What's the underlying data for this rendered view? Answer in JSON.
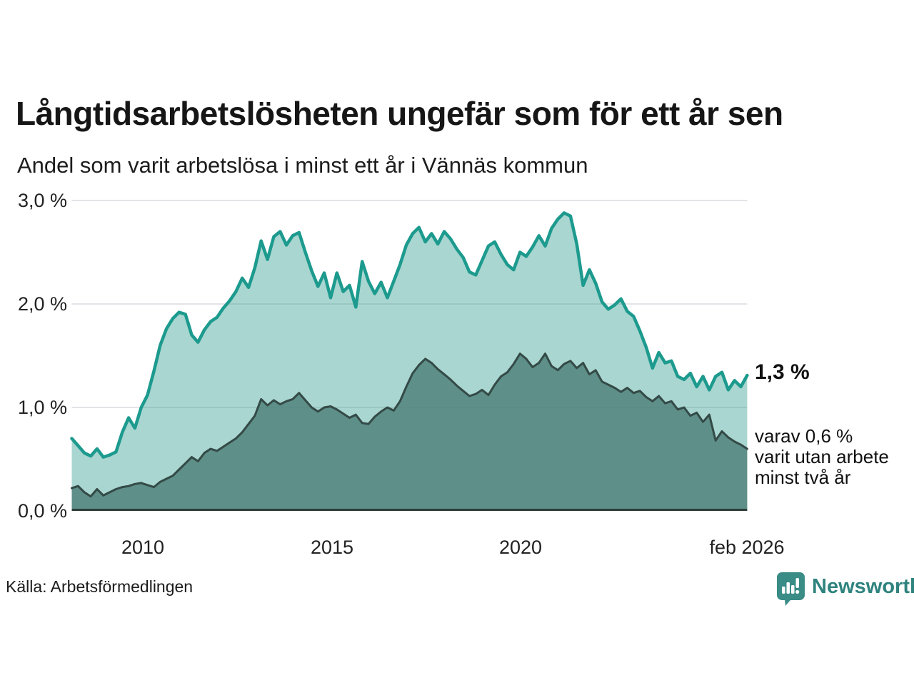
{
  "title": "Långtidsarbetslösheten ungefär som för ett år sen",
  "subtitle": "Andel som varit arbetslösa i minst ett år i Vännäs kommun",
  "source": {
    "text": "Källa: Arbetsförmedlingen"
  },
  "logo": {
    "text": "Newsworthy",
    "icon": "bar-chart-speech-bubble-icon",
    "color": "#2f837e",
    "badge_color": "#3a8c86"
  },
  "chart_data": {
    "type": "area",
    "title": "Långtidsarbetslösheten ungefär som för ett år sen",
    "subtitle": "Andel som varit arbetslösa i minst ett år i Vännäs kommun",
    "unit": "%",
    "x_range": [
      2008.12,
      2026.0
    ],
    "x_start": 2008.12,
    "x_step": 0.1671,
    "ylim": [
      0,
      3.2
    ],
    "grid": true,
    "grid_color": "#e4e4e8",
    "baseline_color": "#2c3d3a",
    "y_ticks": [
      {
        "value": 3.0,
        "label": "3,0 %"
      },
      {
        "value": 2.0,
        "label": "2,0 %"
      },
      {
        "value": 1.0,
        "label": "1,0 %"
      },
      {
        "value": 0.0,
        "label": "0,0 %"
      }
    ],
    "x_ticks": [
      {
        "year": 2010,
        "label": "2010"
      },
      {
        "year": 2015,
        "label": "2015"
      },
      {
        "year": 2020,
        "label": "2020"
      },
      {
        "year": 2026.0,
        "label": "feb 2026"
      }
    ],
    "series": [
      {
        "name": "Arbetslösa minst ett år",
        "color": "#1d9a8e",
        "fill": "rgba(64,164,151,0.45)",
        "line_width": 4.5,
        "end_label": "1,3 %",
        "end_value": 1.3,
        "values": [
          0.7,
          0.63,
          0.56,
          0.53,
          0.6,
          0.52,
          0.54,
          0.57,
          0.76,
          0.9,
          0.8,
          1.0,
          1.12,
          1.35,
          1.6,
          1.76,
          1.86,
          1.92,
          1.9,
          1.7,
          1.63,
          1.75,
          1.83,
          1.87,
          1.96,
          2.03,
          2.12,
          2.25,
          2.16,
          2.35,
          2.61,
          2.43,
          2.65,
          2.7,
          2.57,
          2.66,
          2.69,
          2.5,
          2.32,
          2.17,
          2.3,
          2.06,
          2.3,
          2.12,
          2.18,
          1.97,
          2.41,
          2.22,
          2.1,
          2.21,
          2.06,
          2.22,
          2.38,
          2.57,
          2.68,
          2.74,
          2.6,
          2.68,
          2.58,
          2.7,
          2.63,
          2.53,
          2.45,
          2.31,
          2.28,
          2.42,
          2.56,
          2.6,
          2.48,
          2.38,
          2.33,
          2.5,
          2.46,
          2.55,
          2.66,
          2.56,
          2.73,
          2.82,
          2.88,
          2.85,
          2.58,
          2.18,
          2.33,
          2.2,
          2.02,
          1.95,
          1.99,
          2.05,
          1.93,
          1.88,
          1.74,
          1.58,
          1.38,
          1.53,
          1.43,
          1.45,
          1.3,
          1.27,
          1.33,
          1.2,
          1.3,
          1.17,
          1.3,
          1.34,
          1.17,
          1.26,
          1.2,
          1.31
        ]
      },
      {
        "name": "varav utan arbete minst två år",
        "color": "#344a47",
        "fill": "rgba(75,125,118,0.80)",
        "line_width": 3,
        "end_label_lines": [
          "varav 0,6 %",
          "varit utan arbete",
          "minst två år"
        ],
        "end_value": 0.6,
        "values": [
          0.22,
          0.24,
          0.18,
          0.14,
          0.21,
          0.15,
          0.18,
          0.21,
          0.23,
          0.24,
          0.26,
          0.27,
          0.25,
          0.23,
          0.28,
          0.31,
          0.34,
          0.4,
          0.46,
          0.52,
          0.48,
          0.56,
          0.6,
          0.58,
          0.62,
          0.66,
          0.7,
          0.76,
          0.84,
          0.92,
          1.08,
          1.02,
          1.07,
          1.03,
          1.06,
          1.08,
          1.14,
          1.07,
          1.0,
          0.96,
          1.0,
          1.01,
          0.98,
          0.94,
          0.9,
          0.93,
          0.85,
          0.84,
          0.91,
          0.96,
          1.0,
          0.97,
          1.06,
          1.2,
          1.33,
          1.41,
          1.47,
          1.43,
          1.37,
          1.32,
          1.27,
          1.21,
          1.16,
          1.11,
          1.13,
          1.17,
          1.12,
          1.22,
          1.3,
          1.34,
          1.42,
          1.52,
          1.47,
          1.39,
          1.43,
          1.52,
          1.4,
          1.36,
          1.42,
          1.45,
          1.38,
          1.43,
          1.32,
          1.36,
          1.25,
          1.22,
          1.19,
          1.15,
          1.19,
          1.14,
          1.16,
          1.1,
          1.06,
          1.11,
          1.04,
          1.06,
          0.98,
          1.0,
          0.92,
          0.95,
          0.86,
          0.93,
          0.68,
          0.77,
          0.71,
          0.67,
          0.64,
          0.6
        ]
      }
    ]
  }
}
